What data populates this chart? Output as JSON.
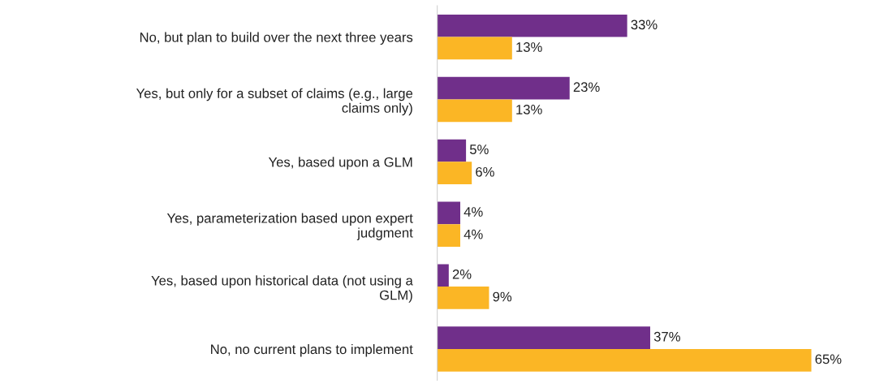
{
  "chart_data": {
    "type": "bar",
    "orientation": "horizontal",
    "tick_labels": "y",
    "grid": false,
    "legend": false,
    "categories": [
      "No, but plan to build over the next three years",
      "Yes, but only for a subset of claims (e.g., large\nclaims only)",
      "Yes, based upon a GLM",
      "Yes, parameterization based upon expert\njudgment",
      "Yes, based upon historical data (not using a\nGLM)",
      "No, no current plans to implement"
    ],
    "series": [
      {
        "color": "#702f8a",
        "values": [
          33,
          23,
          5,
          4,
          2,
          37
        ],
        "value_labels": [
          "33%",
          "23%",
          "5%",
          "4%",
          "2%",
          "37%"
        ]
      },
      {
        "color": "#fbb625",
        "values": [
          13,
          13,
          6,
          4,
          9,
          65
        ],
        "value_labels": [
          "13%",
          "13%",
          "6%",
          "4%",
          "9%",
          "65%"
        ]
      }
    ]
  }
}
